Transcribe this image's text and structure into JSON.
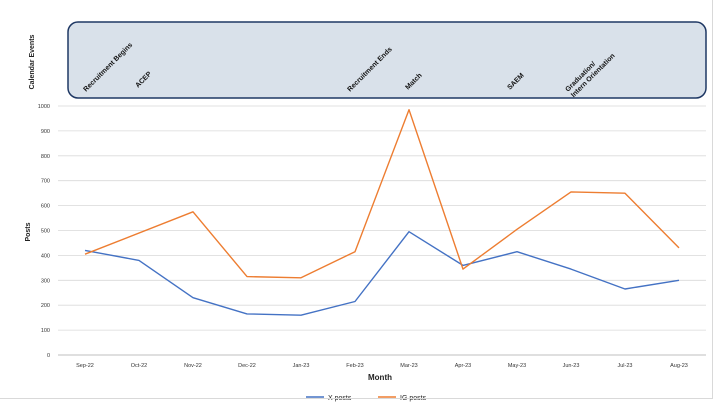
{
  "chart_data": {
    "type": "line",
    "title": "",
    "xlabel": "Month",
    "ylabel": "Posts",
    "ylim": [
      0,
      1000
    ],
    "yticks": [
      0,
      100,
      200,
      300,
      400,
      500,
      600,
      700,
      800,
      900,
      1000
    ],
    "grid": true,
    "legend_position": "bottom",
    "categories": [
      "Sep-22",
      "Oct-22",
      "Nov-22",
      "Dec-22",
      "Jan-23",
      "Feb-23",
      "Mar-23",
      "Apr-23",
      "May-23",
      "Jun-23",
      "Jul-23",
      "Aug-23"
    ],
    "series": [
      {
        "name": "X posts",
        "color": "#4472C4",
        "values": [
          420,
          380,
          230,
          165,
          160,
          215,
          495,
          360,
          415,
          345,
          265,
          300
        ]
      },
      {
        "name": "IG posts",
        "color": "#ED7D31",
        "values": [
          405,
          null,
          575,
          315,
          310,
          415,
          985,
          345,
          505,
          655,
          650,
          430
        ]
      }
    ],
    "events_panel": {
      "label": "Calendar Events",
      "events": [
        {
          "label": "Recruitment Begins",
          "position": "Sep-22"
        },
        {
          "label": "ACEP",
          "position": "Oct-22"
        },
        {
          "label": "Recruitment Ends",
          "position": "Feb-23"
        },
        {
          "label": "Match",
          "position": "Mar-23"
        },
        {
          "label": "SAEM",
          "position": "May-23"
        },
        {
          "label": "Graduation/ Intern Orientation",
          "position": "Jun-23"
        }
      ]
    }
  }
}
